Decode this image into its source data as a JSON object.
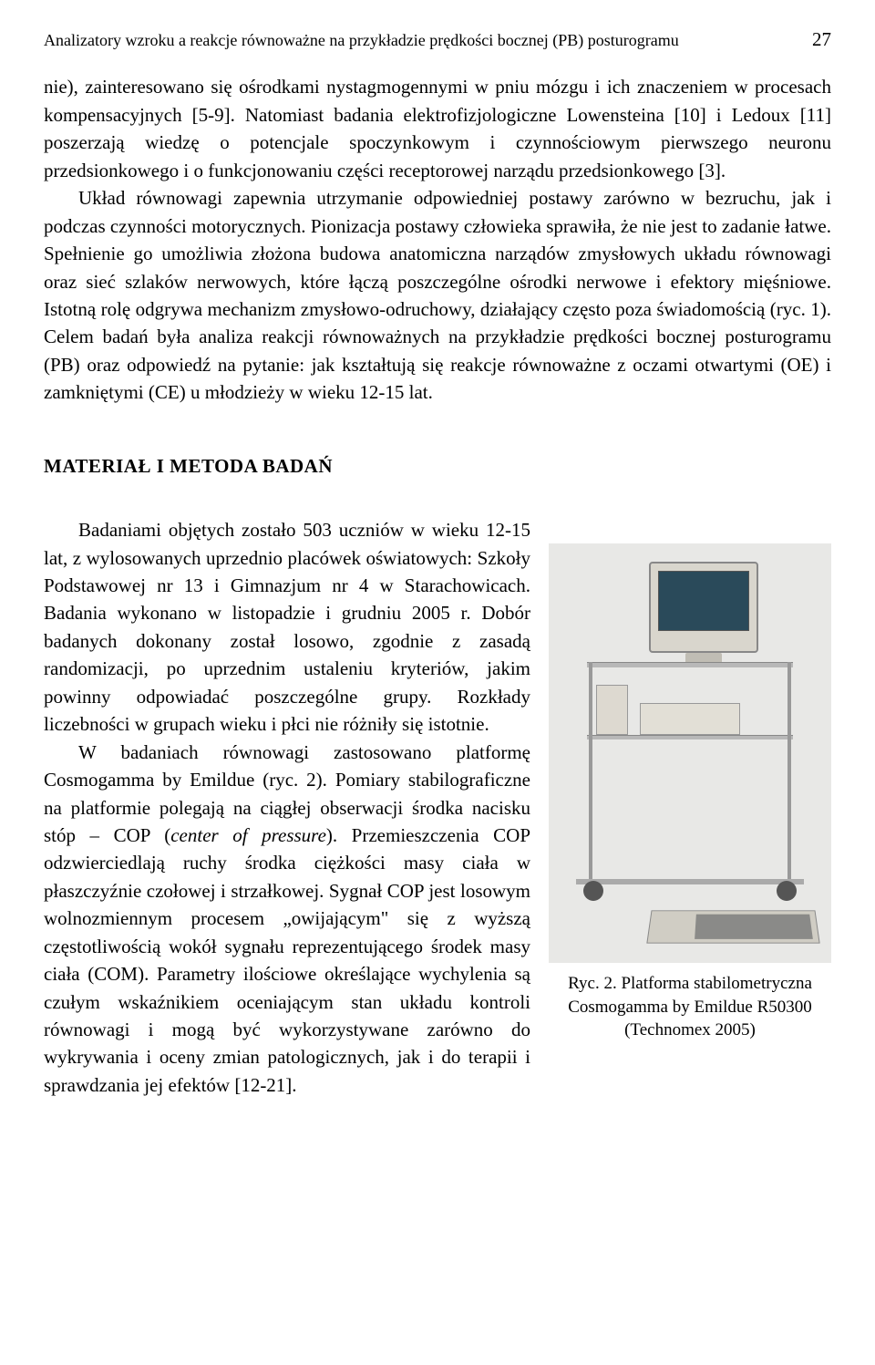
{
  "header": {
    "running_head": "Analizatory wzroku a reakcje równoważne na przykładzie prędkości bocznej (PB) posturogramu",
    "page_number": "27"
  },
  "paragraphs": {
    "p1": "nie), zainteresowano się ośrodkami nystagmogennymi w pniu mózgu i ich znaczeniem w procesach kompensacyjnych [5-9]. Natomiast badania elektrofizjologiczne Lowensteina [10] i Ledoux [11] poszerzają wiedzę o potencjale spoczynkowym i czynnościowym pierwszego neuronu przedsionkowego i o funkcjonowaniu części receptorowej narządu przedsionkowego [3].",
    "p2_part1": "Układ równowagi zapewnia utrzymanie odpowiedniej postawy zarówno w bezruchu, jak i podczas czynności motorycznych. Pionizacja postawy człowieka sprawiła, że nie jest to zadanie łatwe. Spełnienie go umożliwia złożona budowa anatomiczna narządów zmysłowych układu równowagi oraz sieć szlaków nerwowych, które łączą poszczególne ośrodki nerwowe i efektory mięśniowe. Istotną rolę odgrywa mechanizm zmysłowo-odruchowy, działający często poza świadomością (ryc. 1). Celem badań była analiza reakcji równoważnych na przykładzie prędkości bocznej posturogramu (PB) oraz odpowiedź na pytanie: jak kształtują się reakcje równoważne z oczami otwartymi (OE) i zamkniętymi (CE) u młodzieży w wieku 12-15 lat."
  },
  "section_heading": "MATERIAŁ I METODA BADAŃ",
  "methods": {
    "p1": "Badaniami objętych zostało 503 uczniów w wieku 12-15 lat, z wylosowanych uprzednio placówek oświatowych: Szkoły Podstawowej nr 13 i Gimnazjum nr 4 w Starachowicach. Badania wykonano w listopadzie i grudniu 2005 r. Dobór badanych dokonany został losowo, zgodnie z zasadą randomizacji, po uprzednim ustaleniu kryteriów, jakim powinny odpowiadać poszczególne grupy. Rozkłady liczebności w grupach wieku i płci nie różniły się istotnie.",
    "p2_before_italic": "W badaniach równowagi zastosowano platformę Cosmogamma by Emildue (ryc. 2). Pomiary stabilograficzne na platformie polegają na ciągłej obserwacji środka nacisku stóp – COP (",
    "p2_italic": "center of pressure",
    "p2_after_italic": "). Przemieszczenia COP odzwierciedlają ruchy środka ciężkości masy ciała w płaszczyźnie czołowej i strzałkowej. Sygnał COP jest losowym wolnozmiennym procesem „owijającym\" się z wyższą częstotliwością wokół sygnału reprezentującego środek masy ciała (COM). Parametry ilościowe określające wychylenia są czułym wskaźnikiem oceniającym stan układu kontroli równowagi i mogą być wykorzystywane zarówno do wykrywania i oceny zmian patologicznych, jak i do terapii i sprawdzania jej efektów [12-21]."
  },
  "figure": {
    "caption_line1": "Ryc. 2. Platforma stabilometryczna",
    "caption_line2": "Cosmogamma by Emildue R50300",
    "caption_line3": "(Technomex 2005)"
  }
}
